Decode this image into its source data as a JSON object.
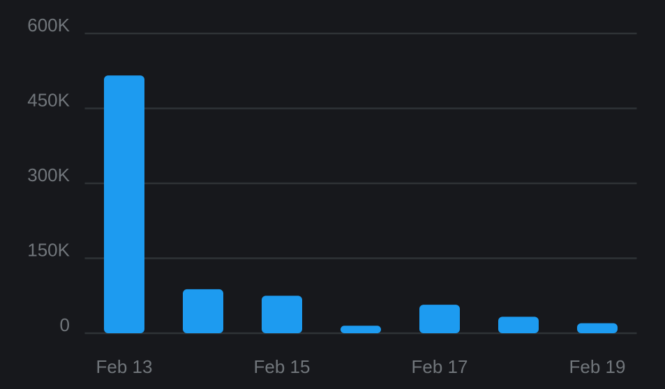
{
  "chart_data": {
    "type": "bar",
    "categories": [
      "Feb 13",
      null,
      "Feb 15",
      null,
      "Feb 17",
      null,
      "Feb 19"
    ],
    "values": [
      516000,
      88000,
      75000,
      15000,
      57000,
      33000,
      20000
    ],
    "color": "#1d9bf0",
    "ylim": [
      0,
      600000
    ],
    "yticks": [
      0,
      {
        "value": 150000,
        "label": "150K"
      },
      {
        "value": 300000,
        "label": "300K"
      },
      {
        "value": 450000,
        "label": "450K"
      },
      {
        "value": 600000,
        "label": "600K"
      }
    ],
    "grid": true
  }
}
